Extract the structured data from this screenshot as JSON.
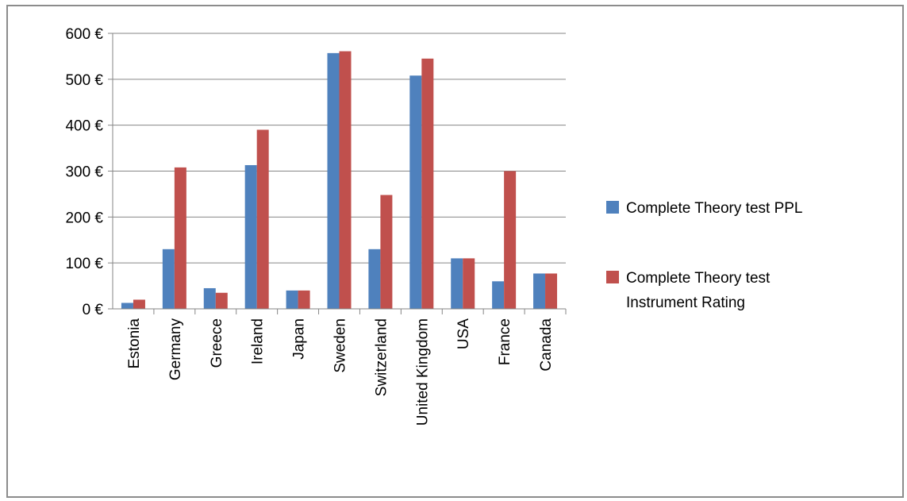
{
  "chart_data": {
    "type": "bar",
    "title": "",
    "xlabel": "",
    "ylabel": "",
    "ylim": [
      0,
      600
    ],
    "y_ticks": [
      0,
      100,
      200,
      300,
      400,
      500,
      600
    ],
    "y_tick_labels": [
      "0 €",
      "100 €",
      "200 €",
      "300 €",
      "400 €",
      "500 €",
      "600 €"
    ],
    "grid": true,
    "legend_position": "right",
    "categories": [
      "Estonia",
      "Germany",
      "Greece",
      "Ireland",
      "Japan",
      "Sweden",
      "Switzerland",
      "United Kingdom",
      "USA",
      "France",
      "Canada"
    ],
    "series": [
      {
        "name": "Complete Theory test PPL",
        "legend_lines": [
          "Complete Theory test PPL"
        ],
        "color": "#4f81bd",
        "values": [
          13,
          130,
          45,
          313,
          40,
          557,
          130,
          508,
          110,
          60,
          77
        ]
      },
      {
        "name": "Complete Theory test Instrument Rating",
        "legend_lines": [
          "Complete Theory test",
          "Instrument Rating"
        ],
        "color": "#c0504d",
        "values": [
          20,
          308,
          35,
          390,
          40,
          561,
          248,
          545,
          110,
          300,
          77
        ]
      }
    ]
  }
}
